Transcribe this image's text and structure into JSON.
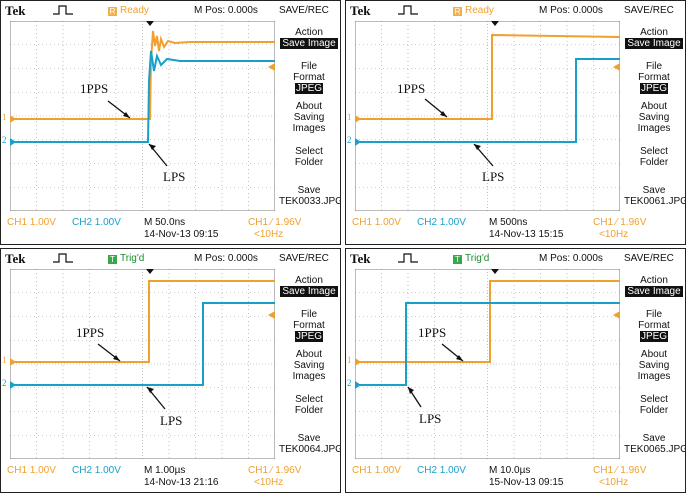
{
  "panels": [
    {
      "brand": "Tek",
      "status": "Ready",
      "status_kind": "ready",
      "mpos": "M Pos: 0.000s",
      "save_rec": "SAVE/REC",
      "menu": {
        "action_title": "Action",
        "action_value": "Save Image",
        "file_format_line1": "File",
        "file_format_line2": "Format",
        "file_format_value": "JPEG",
        "about_line1": "About",
        "about_line2": "Saving",
        "about_line3": "Images",
        "select_line1": "Select",
        "select_line2": "Folder",
        "save_title": "Save",
        "save_file": "TEK0033.JPG"
      },
      "ch1_scale": "CH1  1.00V",
      "ch2_scale": "CH2  1.00V",
      "timebase": "M 50.0ns",
      "date": "14-Nov-13 09:15",
      "trigger": "CH1 ∕ 1.96V",
      "trigger_freq": "<10Hz",
      "label_1pps": "1PPS",
      "label_lps": "LPS",
      "label_a": "1",
      "label_b": "2"
    },
    {
      "brand": "Tek",
      "status": "Ready",
      "status_kind": "ready",
      "mpos": "M Pos: 0.000s",
      "save_rec": "SAVE/REC",
      "menu": {
        "action_title": "Action",
        "action_value": "Save Image",
        "file_format_line1": "File",
        "file_format_line2": "Format",
        "file_format_value": "JPEG",
        "about_line1": "About",
        "about_line2": "Saving",
        "about_line3": "Images",
        "select_line1": "Select",
        "select_line2": "Folder",
        "save_title": "Save",
        "save_file": "TEK0061.JPG"
      },
      "ch1_scale": "CH1  1.00V",
      "ch2_scale": "CH2  1.00V",
      "timebase": "M 500ns",
      "date": "14-Nov-13 15:15",
      "trigger": "CH1 ∕ 1.96V",
      "trigger_freq": "<10Hz",
      "label_1pps": "1PPS",
      "label_lps": "LPS",
      "label_a": "1",
      "label_b": "2"
    },
    {
      "brand": "Tek",
      "status": "Trig'd",
      "status_kind": "trig",
      "mpos": "M Pos: 0.000s",
      "save_rec": "SAVE/REC",
      "menu": {
        "action_title": "Action",
        "action_value": "Save Image",
        "file_format_line1": "File",
        "file_format_line2": "Format",
        "file_format_value": "JPEG",
        "about_line1": "About",
        "about_line2": "Saving",
        "about_line3": "Images",
        "select_line1": "Select",
        "select_line2": "Folder",
        "save_title": "Save",
        "save_file": "TEK0064.JPG"
      },
      "ch1_scale": "CH1  1.00V",
      "ch2_scale": "CH2  1.00V",
      "timebase": "M 1.00µs",
      "date": "14-Nov-13 21:16",
      "trigger": "CH1 ∕ 1.96V",
      "trigger_freq": "<10Hz",
      "label_1pps": "1PPS",
      "label_lps": "LPS",
      "label_a": "1",
      "label_b": "2"
    },
    {
      "brand": "Tek",
      "status": "Trig'd",
      "status_kind": "trig",
      "mpos": "M Pos: 0.000s",
      "save_rec": "SAVE/REC",
      "menu": {
        "action_title": "Action",
        "action_value": "Save Image",
        "file_format_line1": "File",
        "file_format_line2": "Format",
        "file_format_value": "JPEG",
        "about_line1": "About",
        "about_line2": "Saving",
        "about_line3": "Images",
        "select_line1": "Select",
        "select_line2": "Folder",
        "save_title": "Save",
        "save_file": "TEK0065.JPG"
      },
      "ch1_scale": "CH1  1.00V",
      "ch2_scale": "CH2  1.00V",
      "timebase": "M 10.0µs",
      "date": "15-Nov-13 09:15",
      "trigger": "CH1 ∕ 1.96V",
      "trigger_freq": "<10Hz",
      "label_1pps": "1PPS",
      "label_lps": "LPS",
      "label_a": "1",
      "label_b": "2"
    }
  ],
  "colors": {
    "ch1": "#f0a030",
    "ch2": "#1aa0c8",
    "grid": "#9a9a9a"
  }
}
